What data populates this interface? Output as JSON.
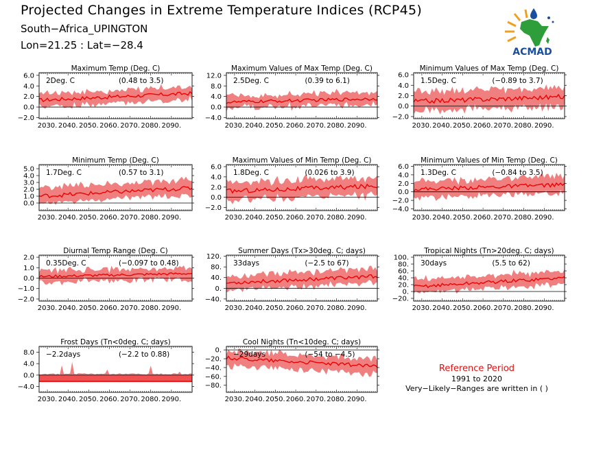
{
  "header": {
    "title": "Projected Changes in Extreme Temperature Indices (RCP45)",
    "location": "South−Africa_UPINGTON",
    "coords": "Lon=21.25 : Lat=−28.4",
    "logo_text": "ACMAD"
  },
  "reference": {
    "title": "Reference Period",
    "period": "1991 to 2020",
    "note": "Very−Likely−Ranges are written in ( )"
  },
  "colors": {
    "band": "#f08080",
    "line": "#ee0000",
    "frost_fill": "#f05050",
    "logo_green": "#2e9e3a",
    "logo_blue": "#1a4fa0",
    "logo_orange": "#f0a020"
  },
  "chart_data": [
    {
      "type": "area",
      "title": "Maximum Temp (Deg. C)",
      "change_label": "2Deg. C",
      "range_label": "(0.48 to 3.5)",
      "x_ticks": [
        "2030.",
        "2040.",
        "2050.",
        "2060.",
        "2070.",
        "2080.",
        "2090."
      ],
      "xlim": [
        2026,
        2100
      ],
      "y_ticks": [
        "6.0",
        "4.0",
        "2.0",
        "0.0",
        "−2.0"
      ],
      "ylim": [
        -2.2,
        6.5
      ],
      "zero_line": 0,
      "series": [
        {
          "start": 1.3,
          "end": 2.6,
          "noise": 0.35
        }
      ],
      "band": {
        "lo_offset": -1.1,
        "hi_offset": 1.1,
        "noise": 0.6
      }
    },
    {
      "type": "area",
      "title": "Maximum Values of Max Temp (Deg. C)",
      "change_label": "2.5Deg. C",
      "range_label": "(0.39 to 6.1)",
      "x_ticks": [
        "2030.",
        "2040.",
        "2050.",
        "2060.",
        "2070.",
        "2080.",
        "2090."
      ],
      "xlim": [
        2026,
        2100
      ],
      "y_ticks": [
        "12.0",
        "8.0",
        "4.0",
        "0.0",
        "−4.0"
      ],
      "ylim": [
        -4.4,
        13.0
      ],
      "zero_line": 0,
      "series": [
        {
          "start": 1.8,
          "end": 3.2,
          "noise": 0.6
        }
      ],
      "band": {
        "lo_offset": -1.8,
        "hi_offset": 2.2,
        "noise": 1.5
      }
    },
    {
      "type": "area",
      "title": "Minimum Values of Max Temp (Deg. C)",
      "change_label": "1.5Deg. C",
      "range_label": "(−0.89 to 3.7)",
      "x_ticks": [
        "2030.",
        "2040.",
        "2050.",
        "2060.",
        "2070.",
        "2080.",
        "2090."
      ],
      "xlim": [
        2026,
        2100
      ],
      "y_ticks": [
        "6.0",
        "4.0",
        "2.0",
        "0.0",
        "−2.0"
      ],
      "ylim": [
        -2.4,
        6.4
      ],
      "zero_line": 0,
      "series": [
        {
          "start": 0.9,
          "end": 1.8,
          "noise": 0.45
        }
      ],
      "band": {
        "lo_offset": -1.6,
        "hi_offset": 1.6,
        "noise": 0.9
      }
    },
    {
      "type": "area",
      "title": "Minimum Temp (Deg. C)",
      "change_label": "1.7Deg. C",
      "range_label": "(0.57 to 3.1)",
      "x_ticks": [
        "2030.",
        "2040.",
        "2050.",
        "2060.",
        "2070.",
        "2080.",
        "2090."
      ],
      "xlim": [
        2026,
        2100
      ],
      "y_ticks": [
        "5.0",
        "4.0",
        "3.0",
        "2.0",
        "1.0",
        "0.0"
      ],
      "ylim": [
        -1.1,
        5.6
      ],
      "zero_line": 0,
      "series": [
        {
          "start": 1.0,
          "end": 2.2,
          "noise": 0.3
        }
      ],
      "band": {
        "lo_offset": -0.9,
        "hi_offset": 1.1,
        "noise": 0.5
      }
    },
    {
      "type": "area",
      "title": "Maximum Values of Min Temp (Deg. C)",
      "change_label": "1.8Deg. C",
      "range_label": "(0.026 to 3.9)",
      "x_ticks": [
        "2030.",
        "2040.",
        "2050.",
        "2060.",
        "2070.",
        "2080.",
        "2090."
      ],
      "xlim": [
        2026,
        2100
      ],
      "y_ticks": [
        "6.0",
        "4.0",
        "2.0",
        "0.0",
        "−2.0"
      ],
      "ylim": [
        -2.6,
        6.4
      ],
      "zero_line": 0,
      "series": [
        {
          "start": 1.2,
          "end": 2.2,
          "noise": 0.45
        }
      ],
      "band": {
        "lo_offset": -1.5,
        "hi_offset": 1.5,
        "noise": 0.9
      }
    },
    {
      "type": "area",
      "title": "Minimum Values of Min Temp (Deg. C)",
      "change_label": "1.3Deg. C",
      "range_label": "(−0.84 to 3.5)",
      "x_ticks": [
        "2030.",
        "2040.",
        "2050.",
        "2060.",
        "2070.",
        "2080.",
        "2090."
      ],
      "xlim": [
        2026,
        2100
      ],
      "y_ticks": [
        "6.0",
        "4.0",
        "2.0",
        "0.0",
        "−2.0",
        "−4.0"
      ],
      "ylim": [
        -4.4,
        6.4
      ],
      "zero_line": 0,
      "series": [
        {
          "start": 0.6,
          "end": 1.7,
          "noise": 0.45
        }
      ],
      "band": {
        "lo_offset": -1.7,
        "hi_offset": 1.7,
        "noise": 1.0
      }
    },
    {
      "type": "area",
      "title": "Diurnal Temp Range (Deg. C)",
      "change_label": "0.35Deg. C",
      "range_label": "(−0.097 to 0.48)",
      "x_ticks": [
        "2030.",
        "2040.",
        "2050.",
        "2060.",
        "2070.",
        "2080.",
        "2090."
      ],
      "xlim": [
        2026,
        2100
      ],
      "y_ticks": [
        "2.0",
        "1.0",
        "0.0",
        "−1.0",
        "−2.0"
      ],
      "ylim": [
        -2.2,
        2.2
      ],
      "zero_line": 0,
      "series": [
        {
          "start": 0.15,
          "end": 0.45,
          "noise": 0.12
        }
      ],
      "band": {
        "lo_offset": -0.45,
        "hi_offset": 0.45,
        "noise": 0.4
      }
    },
    {
      "type": "area",
      "title": "Summer Days (Tx>30deg. C; days)",
      "change_label": "33days",
      "range_label": "(−2.5 to 67)",
      "x_ticks": [
        "2030.",
        "2040.",
        "2050.",
        "2060.",
        "2070.",
        "2080.",
        "2090."
      ],
      "xlim": [
        2026,
        2100
      ],
      "y_ticks": [
        "120.",
        "80.",
        "40.",
        "0.",
        "−40."
      ],
      "ylim": [
        -48,
        124
      ],
      "zero_line": 0,
      "series": [
        {
          "start": 20,
          "end": 45,
          "noise": 7
        }
      ],
      "band": {
        "lo_offset": -22,
        "hi_offset": 25,
        "noise": 15
      }
    },
    {
      "type": "area",
      "title": "Tropical Nights (Tn>20deg. C; days)",
      "change_label": "30days",
      "range_label": "(5.5 to 62)",
      "x_ticks": [
        "2030.",
        "2040.",
        "2050.",
        "2060.",
        "2070.",
        "2080.",
        "2090."
      ],
      "xlim": [
        2026,
        2100
      ],
      "y_ticks": [
        "100.",
        "80.",
        "60.",
        "40.",
        "20.",
        "0.",
        "−20."
      ],
      "ylim": [
        -28,
        106
      ],
      "zero_line": 0,
      "series": [
        {
          "start": 14,
          "end": 40,
          "noise": 5
        }
      ],
      "band": {
        "lo_offset": -16,
        "hi_offset": 18,
        "noise": 10
      }
    },
    {
      "type": "area",
      "title": "Frost Days (Tn<0deg. C; days)",
      "change_label": "−2.2days",
      "range_label": "(−2.2 to 0.88)",
      "x_ticks": [
        "2030.",
        "2040.",
        "2050.",
        "2060.",
        "2070.",
        "2080.",
        "2090."
      ],
      "xlim": [
        2026,
        2100
      ],
      "y_ticks": [
        "8.0",
        "4.0",
        "0.0",
        "−4.0"
      ],
      "ylim": [
        -6.0,
        10.0
      ],
      "zero_line": 0,
      "series": [
        {
          "start": -2.2,
          "end": -2.2,
          "noise": 0
        }
      ],
      "band": {
        "lo_offset": 0,
        "hi_offset": 2.2,
        "noise": 1.0
      },
      "spikes": [
        [
          2037,
          3.4
        ],
        [
          2042,
          4.6
        ],
        [
          2059,
          1.9
        ],
        [
          2080,
          3.3
        ],
        [
          2094,
          1.2
        ]
      ]
    },
    {
      "type": "area",
      "title": "Cool Nights (Tn<10deg. C; days)",
      "change_label": "−29days",
      "range_label": "(−54 to −4.5)",
      "x_ticks": [
        "2030.",
        "2040.",
        "2050.",
        "2060.",
        "2070.",
        "2080.",
        "2090."
      ],
      "xlim": [
        2026,
        2100
      ],
      "y_ticks": [
        "0.",
        "−20.",
        "−40.",
        "−60.",
        "−80."
      ],
      "ylim": [
        -96,
        8
      ],
      "zero_line": 0,
      "series": [
        {
          "start": -18,
          "end": -37,
          "noise": 4
        }
      ],
      "band": {
        "lo_offset": -16,
        "hi_offset": 14,
        "noise": 9
      }
    }
  ]
}
